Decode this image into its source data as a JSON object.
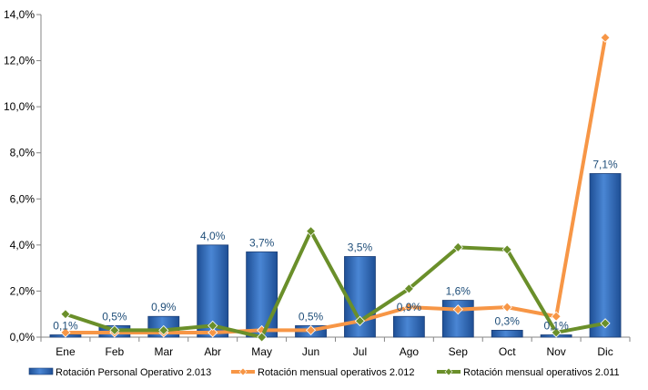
{
  "chart_data": {
    "type": "bar",
    "categories": [
      "Ene",
      "Feb",
      "Mar",
      "Abr",
      "May",
      "Jun",
      "Jul",
      "Ago",
      "Sep",
      "Oct",
      "Nov",
      "Dic"
    ],
    "ylim": [
      0,
      14
    ],
    "yticks": [
      "0,0%",
      "2,0%",
      "4,0%",
      "6,0%",
      "8,0%",
      "10,0%",
      "12,0%",
      "14,0%"
    ],
    "grid": false,
    "legend_position": "bottom",
    "series": [
      {
        "name": "Rotación Personal Operativo 2.013",
        "type": "bar",
        "color": "#3A75C4",
        "values": [
          0.1,
          0.5,
          0.9,
          4.0,
          3.7,
          0.5,
          3.5,
          0.9,
          1.6,
          0.3,
          0.1,
          7.1
        ],
        "labels": [
          "0,1%",
          "0,5%",
          "0,9%",
          "4,0%",
          "3,7%",
          "0,5%",
          "3,5%",
          "0,9%",
          "1,6%",
          "0,3%",
          "0,1%",
          "7,1%"
        ]
      },
      {
        "name": "Rotación mensual operativos 2.012",
        "type": "line",
        "color": "#F79646",
        "values": [
          0.2,
          0.2,
          0.2,
          0.2,
          0.3,
          0.3,
          0.7,
          1.3,
          1.2,
          1.3,
          0.9,
          13.0
        ]
      },
      {
        "name": "Rotación mensual operativos 2.011",
        "type": "line",
        "color": "#6A8F2A",
        "values": [
          1.0,
          0.3,
          0.3,
          0.5,
          0.0,
          4.6,
          0.7,
          2.1,
          3.9,
          3.8,
          0.2,
          0.6
        ]
      }
    ]
  }
}
